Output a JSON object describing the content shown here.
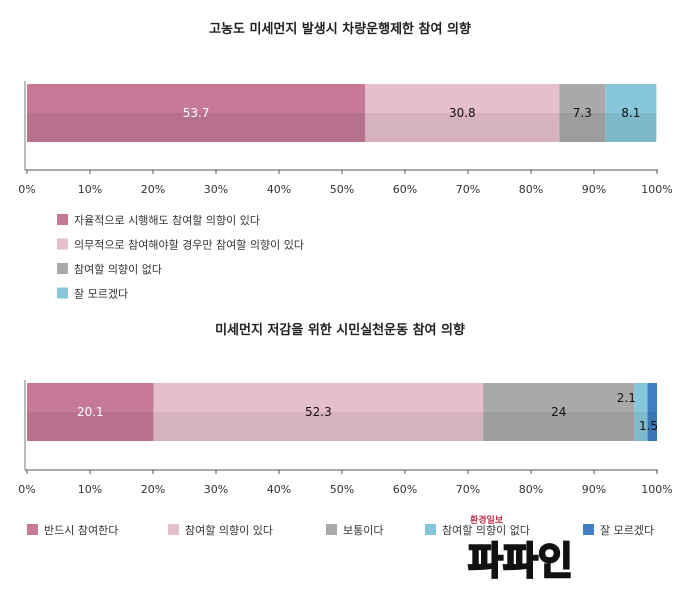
{
  "chart_data": [
    {
      "type": "bar",
      "orientation": "horizontal-stacked",
      "title": "고농도 미세먼지 발생시 차량운행제한 참여 의향",
      "xlim": [
        0,
        100
      ],
      "x_ticks": [
        "0%",
        "10%",
        "20%",
        "30%",
        "40%",
        "50%",
        "60%",
        "70%",
        "80%",
        "90%",
        "100%"
      ],
      "legend_position": "bottom-left-vertical",
      "series": [
        {
          "name": "자율적으로 시행해도 참여할 의향이 있다",
          "values": [
            53.7
          ],
          "label": "53.7",
          "color": "#c67a98",
          "label_color": "#ffffff"
        },
        {
          "name": "의무적으로 참여해야할 경우만 참여할 의향이 있다",
          "values": [
            30.8
          ],
          "label": "30.8",
          "color": "#e6bfce",
          "label_color": "#111111"
        },
        {
          "name": "참여할 의향이 없다",
          "values": [
            7.3
          ],
          "label": "7.3",
          "color": "#a9a9a9",
          "label_color": "#111111"
        },
        {
          "name": "잘 모르겠다",
          "values": [
            8.1
          ],
          "label": "8.1",
          "color": "#86c6da",
          "label_color": "#111111"
        }
      ]
    },
    {
      "type": "bar",
      "orientation": "horizontal-stacked",
      "title": "미세먼지 저감을 위한 시민실천운동 참여 의향",
      "xlim": [
        0,
        100
      ],
      "x_ticks": [
        "0%",
        "10%",
        "20%",
        "30%",
        "40%",
        "50%",
        "60%",
        "70%",
        "80%",
        "90%",
        "100%"
      ],
      "legend_position": "bottom-horizontal",
      "series": [
        {
          "name": "반드시 참여한다",
          "values": [
            20.1
          ],
          "label": "20.1",
          "color": "#c67a98",
          "label_color": "#ffffff"
        },
        {
          "name": "참여할 의향이 있다",
          "values": [
            52.3
          ],
          "label": "52.3",
          "color": "#e6bfce",
          "label_color": "#111111"
        },
        {
          "name": "보통이다",
          "values": [
            24
          ],
          "label": "24",
          "color": "#a9a9a9",
          "label_color": "#111111"
        },
        {
          "name": "참여할 의향이 없다",
          "values": [
            2.1
          ],
          "label": "2.1",
          "color": "#86c6da",
          "label_color": "#111111"
        },
        {
          "name": "잘 모르겠다",
          "values": [
            1.5
          ],
          "label": "1.5",
          "color": "#3f7fc2",
          "label_color": "#111111"
        }
      ]
    }
  ],
  "watermark": {
    "small_text": "환경일보",
    "big_text": "파파인"
  }
}
